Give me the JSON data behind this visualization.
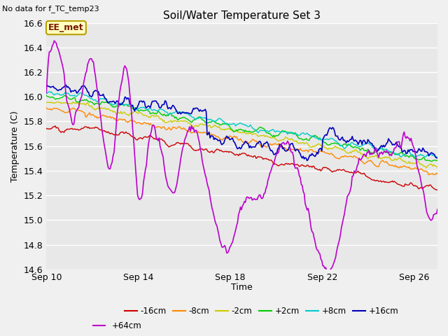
{
  "title": "Soil/Water Temperature Set 3",
  "xlabel": "Time",
  "ylabel": "Temperature (C)",
  "ylim": [
    14.6,
    16.6
  ],
  "xlim": [
    0,
    17
  ],
  "xtick_positions": [
    0,
    4,
    8,
    12,
    16
  ],
  "xtick_labels": [
    "Sep 10",
    "Sep 14",
    "Sep 18",
    "Sep 22",
    "Sep 26"
  ],
  "ytick_positions": [
    14.6,
    14.8,
    15.0,
    15.2,
    15.4,
    15.6,
    15.8,
    16.0,
    16.2,
    16.4,
    16.6
  ],
  "plot_bg_color": "#e8e8e8",
  "fig_bg_color": "#f0f0f0",
  "grid_color": "#ffffff",
  "subtitle": "No data for f_TC_temp23",
  "annotation": "EE_met",
  "annotation_color": "#7a1a00",
  "annotation_bg": "#ffffc0",
  "annotation_border": "#b8a000",
  "series": [
    {
      "label": "-16cm",
      "color": "#cc0000"
    },
    {
      "label": "-8cm",
      "color": "#ff8800"
    },
    {
      "label": "-2cm",
      "color": "#cccc00"
    },
    {
      "label": "+2cm",
      "color": "#00cc00"
    },
    {
      "label": "+8cm",
      "color": "#00cccc"
    },
    {
      "label": "+16cm",
      "color": "#0000bb"
    },
    {
      "label": "+64cm",
      "color": "#bb00cc"
    }
  ],
  "n_points": 400,
  "days": 17
}
